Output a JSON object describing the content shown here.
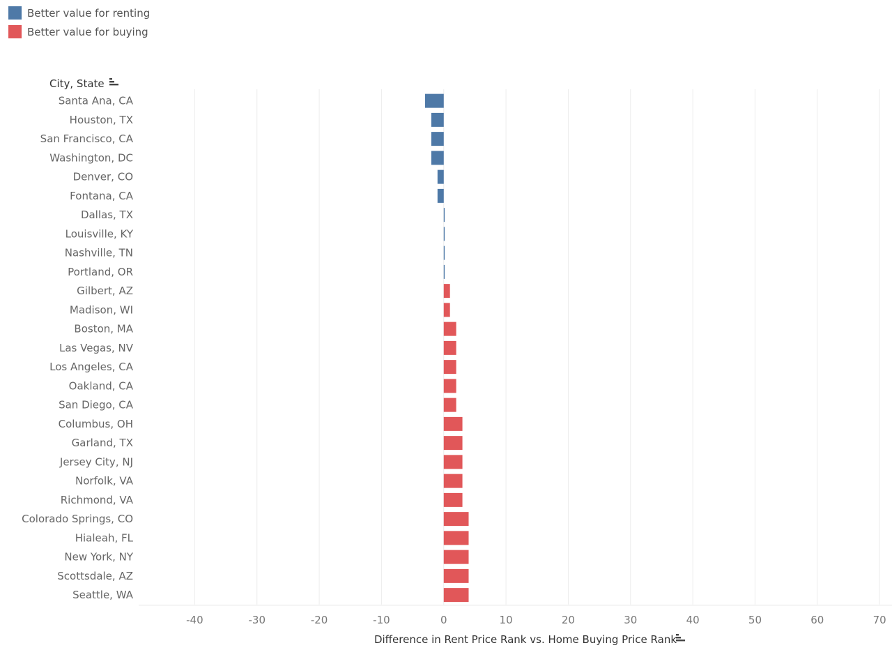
{
  "legend": {
    "items": [
      {
        "label": "Better value for renting",
        "color": "#4e79a7"
      },
      {
        "label": "Better value for buying",
        "color": "#e15759"
      }
    ]
  },
  "chart_data": {
    "type": "bar",
    "orientation": "horizontal",
    "row_header": "City, State",
    "xlabel": "Difference in Rent Price Rank vs. Home Buying Price Rank",
    "xlim": [
      -49,
      72
    ],
    "xticks": [
      -40,
      -30,
      -20,
      -10,
      0,
      10,
      20,
      30,
      40,
      50,
      60,
      70
    ],
    "grid": true,
    "categories": [
      "Santa Ana, CA",
      "Houston, TX",
      "San Francisco, CA",
      "Washington, DC",
      "Denver, CO",
      "Fontana, CA",
      "Dallas, TX",
      "Louisville, KY",
      "Nashville, TN",
      "Portland, OR",
      "Gilbert, AZ",
      "Madison, WI",
      "Boston, MA",
      "Las Vegas, NV",
      "Los Angeles, CA",
      "Oakland, CA",
      "San Diego, CA",
      "Columbus, OH",
      "Garland, TX",
      "Jersey City, NJ",
      "Norfolk, VA",
      "Richmond, VA",
      "Colorado Springs, CO",
      "Hialeah, FL",
      "New York, NY",
      "Scottsdale, AZ",
      "Seattle, WA"
    ],
    "values": [
      -3,
      -2,
      -2,
      -2,
      -1,
      -1,
      0,
      0,
      0,
      0,
      1,
      1,
      2,
      2,
      2,
      2,
      2,
      3,
      3,
      3,
      3,
      3,
      4,
      4,
      4,
      4,
      4
    ],
    "colors": {
      "negative": "#4e79a7",
      "positive": "#e15759"
    }
  }
}
